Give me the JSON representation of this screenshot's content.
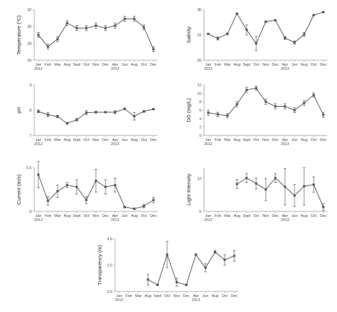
{
  "colors": {
    "series": "#555555",
    "axis": "#999999",
    "text": "#444444"
  },
  "chart_data": [
    {
      "type": "line",
      "ylabel": "Temperature (°C)",
      "ylim": [
        26,
        32
      ],
      "yticks": [
        "26",
        "28",
        "30",
        "32"
      ],
      "xticks": [
        "Jan",
        "Feb",
        "Mar",
        "Aug",
        "Sept",
        "Oct",
        "Nov",
        "Dec",
        "Apr",
        "Jun",
        "Aug",
        "Oct",
        "Dec"
      ],
      "years": [
        {
          "label": "2012",
          "at": 0
        },
        {
          "label": "2013",
          "at": 8
        }
      ],
      "values": [
        29.0,
        27.6,
        28.5,
        30.4,
        29.8,
        29.8,
        30.1,
        29.8,
        30.1,
        30.9,
        30.9,
        29.9,
        27.3
      ],
      "errors": [
        0.3,
        0.3,
        0.3,
        0.3,
        0.3,
        0.3,
        0.3,
        0.3,
        0.3,
        0.3,
        0.3,
        0.3,
        0.3
      ],
      "grid": false
    },
    {
      "type": "line",
      "ylabel": "Salinity",
      "ylim": [
        26,
        36
      ],
      "yticks": [
        "26",
        "31",
        "36"
      ],
      "xticks": [
        "Jan",
        "Feb",
        "Mar",
        "Aug",
        "Sept",
        "Oct",
        "Nov",
        "Dec",
        "Apr",
        "Jun",
        "Aug",
        "Oct",
        "Dec"
      ],
      "years": [
        {
          "label": "2012",
          "at": 0
        },
        {
          "label": "2013",
          "at": 8
        }
      ],
      "values": [
        31.2,
        30.3,
        31.2,
        35.2,
        32.0,
        29.3,
        33.6,
        33.9,
        30.4,
        29.5,
        31.1,
        34.9,
        35.5
      ],
      "errors": [
        0.1,
        0.3,
        0.2,
        0.1,
        1.0,
        1.4,
        0.1,
        0.1,
        0.3,
        0.3,
        0.4,
        0.1,
        0.1
      ],
      "grid": false
    },
    {
      "type": "line",
      "ylabel": "pH",
      "ylim": [
        7,
        9
      ],
      "yticks": [
        "7",
        "8",
        "9"
      ],
      "xticks": [
        "Jan",
        "Feb",
        "Mar",
        "Aug",
        "Sept",
        "Oct",
        "Nov",
        "Dec",
        "Apr",
        "Jun",
        "Aug",
        "Oct",
        "Dec"
      ],
      "years": [
        {
          "label": "2012",
          "at": 0
        },
        {
          "label": "2013",
          "at": 8
        }
      ],
      "values": [
        7.95,
        7.82,
        7.75,
        7.48,
        7.62,
        7.9,
        7.92,
        7.92,
        7.92,
        8.05,
        7.76,
        7.95,
        8.04
      ],
      "errors": [
        0.05,
        0.08,
        0.05,
        0.04,
        0.05,
        0.08,
        0.04,
        0.03,
        0.06,
        0.04,
        0.15,
        0.04,
        0.03
      ],
      "grid": false
    },
    {
      "type": "line",
      "ylabel": "DO (mg/L)",
      "ylim": [
        0,
        12
      ],
      "yticks": [
        "0",
        "2",
        "4",
        "6",
        "8",
        "10",
        "12"
      ],
      "xticks": [
        "Jan",
        "Feb",
        "Mar",
        "Aug",
        "Sept",
        "Oct",
        "Nov",
        "Dec",
        "Apr",
        "Jun",
        "Aug",
        "Oct",
        "Dec"
      ],
      "years": [
        {
          "label": "2012",
          "at": 0
        },
        {
          "label": "2013",
          "at": 8
        }
      ],
      "values": [
        5.4,
        5.0,
        4.7,
        7.4,
        10.8,
        11.2,
        8.0,
        6.9,
        6.9,
        6.0,
        7.7,
        9.6,
        4.9
      ],
      "errors": [
        0.6,
        0.5,
        0.5,
        0.6,
        0.6,
        0.5,
        0.6,
        0.6,
        0.6,
        0.6,
        0.6,
        0.5,
        0.6
      ],
      "grid": false
    },
    {
      "type": "line",
      "ylabel": "Current (m/s)",
      "ylim": [
        0,
        0.5
      ],
      "yticks": [
        "0",
        "0.5"
      ],
      "xticks": [
        "Jan",
        "Feb",
        "Mar",
        "Aug",
        "Sept",
        "Oct",
        "Nov",
        "Dec",
        "Apr",
        "Jun",
        "Aug",
        "Oct",
        "Dec"
      ],
      "years": [
        {
          "label": "2012",
          "at": 0
        },
        {
          "label": "2013",
          "at": 8
        }
      ],
      "values": [
        0.42,
        0.12,
        0.23,
        0.3,
        0.28,
        0.13,
        0.35,
        0.28,
        0.3,
        0.05,
        0.03,
        0.06,
        0.13
      ],
      "errors": [
        0.15,
        0.05,
        0.07,
        0.03,
        0.08,
        0.04,
        0.13,
        0.08,
        0.08,
        0.01,
        0.01,
        0.02,
        0.03
      ],
      "grid": false
    },
    {
      "type": "line",
      "ylabel": "Light Intensity",
      "ylim": [
        6,
        14
      ],
      "yticks": [
        "6",
        "12"
      ],
      "xticks": [
        "Jan",
        "Feb",
        "Mar",
        "Aug",
        "Sept",
        "Oct",
        "Nov",
        "Dec",
        "Apr",
        "Jun",
        "Aug",
        "Oct",
        "Dec"
      ],
      "years": [
        {
          "label": "2012",
          "at": 0
        },
        {
          "label": "2013",
          "at": 8
        }
      ],
      "values": [
        null,
        null,
        null,
        11.0,
        12.1,
        11.1,
        10.0,
        12.1,
        10.5,
        8.9,
        10.6,
        10.9,
        6.8
      ],
      "errors": [
        0,
        0,
        0,
        0.8,
        0.8,
        1.0,
        2.0,
        0.8,
        3.3,
        2.0,
        3.4,
        1.4,
        0.6
      ],
      "grid": false
    },
    {
      "type": "line",
      "ylabel": "Transparency (m)",
      "ylim": [
        0,
        4
      ],
      "yticks": [
        "0.0",
        "2.0",
        "4.0"
      ],
      "xticks": [
        "Jan",
        "Feb",
        "Mar",
        "Aug",
        "Sept",
        "Oct",
        "Nov",
        "Dec",
        "Apr",
        "Jun",
        "Aug",
        "Oct",
        "Dec"
      ],
      "years": [
        {
          "label": "2012",
          "at": 0
        },
        {
          "label": "2013",
          "at": 8
        }
      ],
      "values": [
        null,
        null,
        null,
        0.9,
        0.5,
        2.8,
        0.7,
        0.5,
        2.8,
        1.8,
        3.0,
        2.4,
        2.7
      ],
      "errors": [
        0,
        0,
        0,
        0.4,
        0.05,
        1.0,
        0.3,
        0.05,
        0.05,
        0.3,
        0.1,
        0.4,
        0.4
      ],
      "grid": false
    }
  ]
}
